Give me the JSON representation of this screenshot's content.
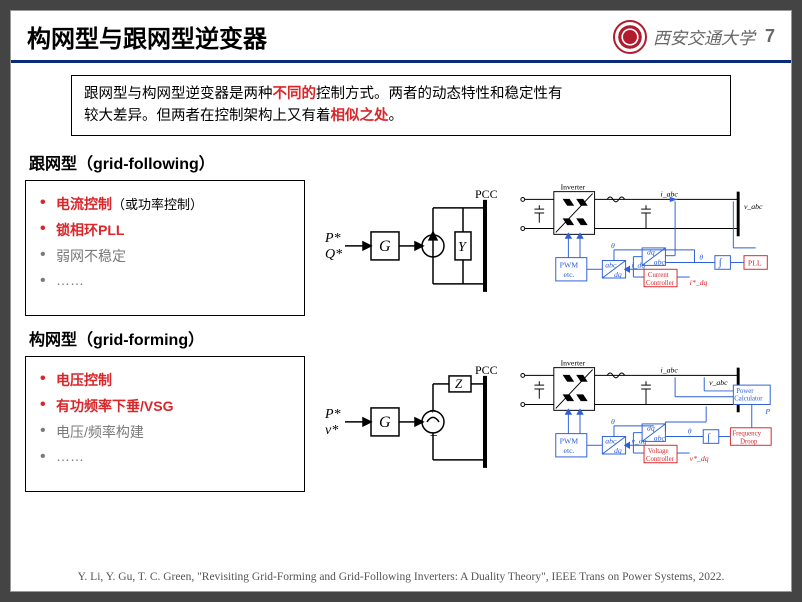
{
  "header": {
    "title": "构网型与跟网型逆变器",
    "university": "西安交通大学",
    "page_number": "7"
  },
  "intro": {
    "line1_pre": "跟网型与构网型逆变器是两种",
    "line1_em": "不同的",
    "line1_post": "控制方式。两者的动态特性和稳定性有",
    "line2_pre": "较大差异。但两者在控制架构上又有着",
    "line2_em": "相似之处",
    "line2_post": "。"
  },
  "section_following": {
    "title": "跟网型（grid-following）",
    "bullets": [
      {
        "text": "电流控制",
        "paren": "（或功率控制）",
        "red": true
      },
      {
        "text": "锁相环PLL",
        "red": true
      },
      {
        "text": "弱网不稳定",
        "red": false
      },
      {
        "text": "……",
        "red": false
      }
    ],
    "block_diagram": {
      "input_top": "P*",
      "input_bot": "Q*",
      "block": "G",
      "admittance": "Y",
      "node": "PCC"
    },
    "circuit": {
      "label_inverter": "Inverter",
      "label_iabc": "i_abc",
      "label_vabc": "v_abc",
      "pwm": "PWM\netc.",
      "controller": "Current\nController",
      "controller_color": "#d9262b",
      "pll": "PLL",
      "pll_color": "#d9262b",
      "idq": "i_dq",
      "idq_ref": "i*_dq",
      "abc": "abc",
      "dq": "dq",
      "theta": "θ",
      "integ": "∫"
    }
  },
  "section_forming": {
    "title": "构网型（grid-forming）",
    "bullets": [
      {
        "text": "电压控制",
        "red": true
      },
      {
        "text": "有功频率下垂/VSG",
        "red": true
      },
      {
        "text": "电压/频率构建",
        "red": false
      },
      {
        "text": "……",
        "red": false
      }
    ],
    "block_diagram": {
      "input_top": "P*",
      "input_bot": "v*",
      "block": "G",
      "impedance": "Z",
      "node": "PCC"
    },
    "circuit": {
      "label_inverter": "Inverter",
      "label_iabc": "i_abc",
      "label_vabc": "v_abc",
      "pwm": "PWM\netc.",
      "controller": "Voltage\nController",
      "controller_color": "#d9262b",
      "power_calc": "Power\nCalculator",
      "power_calc_color": "#2c5fd8",
      "droop": "Frequency\nDroop",
      "droop_color": "#d9262b",
      "vdq": "v_dq",
      "vdq_ref": "v*_dq",
      "P": "P",
      "abc": "abc",
      "dq": "dq",
      "theta": "θ",
      "integ": "∫"
    }
  },
  "citation": "Y. Li, Y. Gu, T. C. Green, \"Revisiting Grid-Forming and Grid-Following Inverters: A Duality Theory\", IEEE Trans on Power Systems, 2022.",
  "colors": {
    "accent_red": "#d9262b",
    "accent_blue": "#2c5fd8",
    "header_rule": "#0a2a7a",
    "gray_text": "#7a7a7a"
  }
}
